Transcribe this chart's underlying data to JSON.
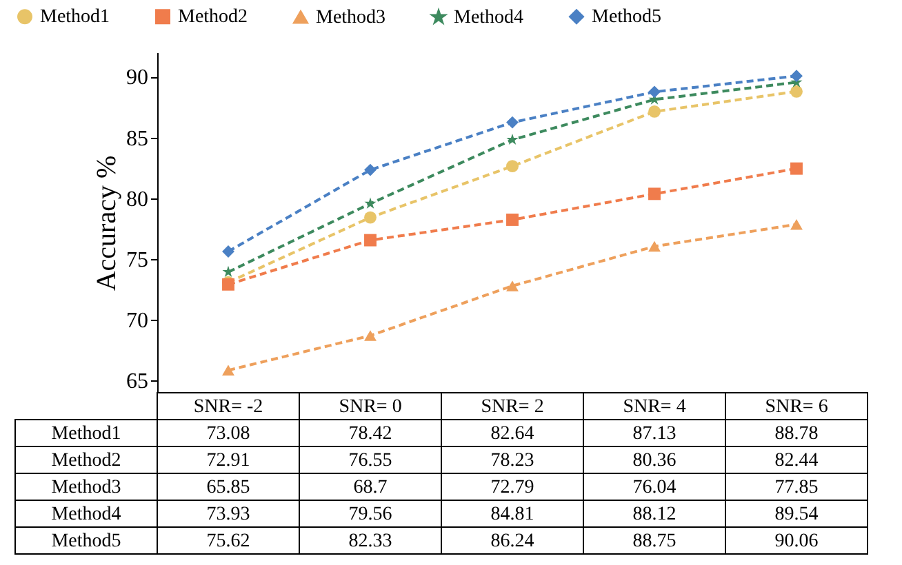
{
  "chart_data": {
    "type": "line",
    "ylabel": "Accuracy %",
    "categories": [
      "SNR= -2",
      "SNR= 0",
      "SNR= 2",
      "SNR= 4",
      "SNR= 6"
    ],
    "series": [
      {
        "name": "Method1",
        "color": "#e8c468",
        "marker": "circle",
        "values": [
          73.08,
          78.42,
          82.64,
          87.13,
          88.78
        ],
        "value_labels": [
          "73.08",
          "78.42",
          "82.64",
          "87.13",
          "88.78"
        ]
      },
      {
        "name": "Method2",
        "color": "#f07c4c",
        "marker": "square",
        "values": [
          72.91,
          76.55,
          78.23,
          80.36,
          82.44
        ],
        "value_labels": [
          "72.91",
          "76.55",
          "78.23",
          "80.36",
          "82.44"
        ]
      },
      {
        "name": "Method3",
        "color": "#eea05c",
        "marker": "triangle",
        "values": [
          65.85,
          68.7,
          72.79,
          76.04,
          77.85
        ],
        "value_labels": [
          "65.85",
          "68.7",
          "72.79",
          "76.04",
          "77.85"
        ]
      },
      {
        "name": "Method4",
        "color": "#3d8a5e",
        "marker": "star",
        "values": [
          73.93,
          79.56,
          84.81,
          88.12,
          89.54
        ],
        "value_labels": [
          "73.93",
          "79.56",
          "84.81",
          "88.12",
          "89.54"
        ]
      },
      {
        "name": "Method5",
        "color": "#4a80c4",
        "marker": "diamond",
        "values": [
          75.62,
          82.33,
          86.24,
          88.75,
          90.06
        ],
        "value_labels": [
          "75.62",
          "82.33",
          "86.24",
          "88.75",
          "90.06"
        ]
      }
    ],
    "ylim": [
      64,
      92
    ],
    "yticks": [
      65,
      70,
      75,
      80,
      85,
      90
    ],
    "line_style": "dashed",
    "legend": "top",
    "grid": false
  }
}
